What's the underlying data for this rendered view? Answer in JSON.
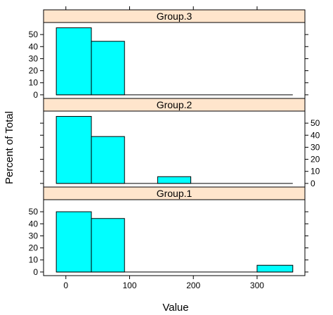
{
  "chart_data": {
    "type": "bar",
    "layout": "lattice-histogram-3-panels-stacked",
    "xlabel": "Value",
    "ylabel": "Percent of Total",
    "xlim": [
      -35,
      375
    ],
    "ylim": [
      -3,
      60
    ],
    "x_ticks": [
      0,
      100,
      200,
      300
    ],
    "y_ticks": [
      0,
      10,
      20,
      30,
      40,
      50
    ],
    "bin_edges": [
      -15,
      40,
      92,
      144,
      196,
      248,
      300,
      356
    ],
    "colors": {
      "bar_fill": "#00ffff",
      "strip": "#ffe5cc",
      "stroke": "#000000"
    },
    "panels": [
      {
        "label": "Group.3",
        "y_axis_side": "left",
        "values": [
          55.6,
          44.4,
          0,
          0,
          0,
          0,
          0
        ]
      },
      {
        "label": "Group.2",
        "y_axis_side": "right",
        "values": [
          55.6,
          38.9,
          0,
          5.6,
          0,
          0,
          0
        ]
      },
      {
        "label": "Group.1",
        "y_axis_side": "left",
        "values": [
          50.0,
          44.4,
          0,
          0,
          0,
          0,
          5.6
        ]
      }
    ]
  }
}
